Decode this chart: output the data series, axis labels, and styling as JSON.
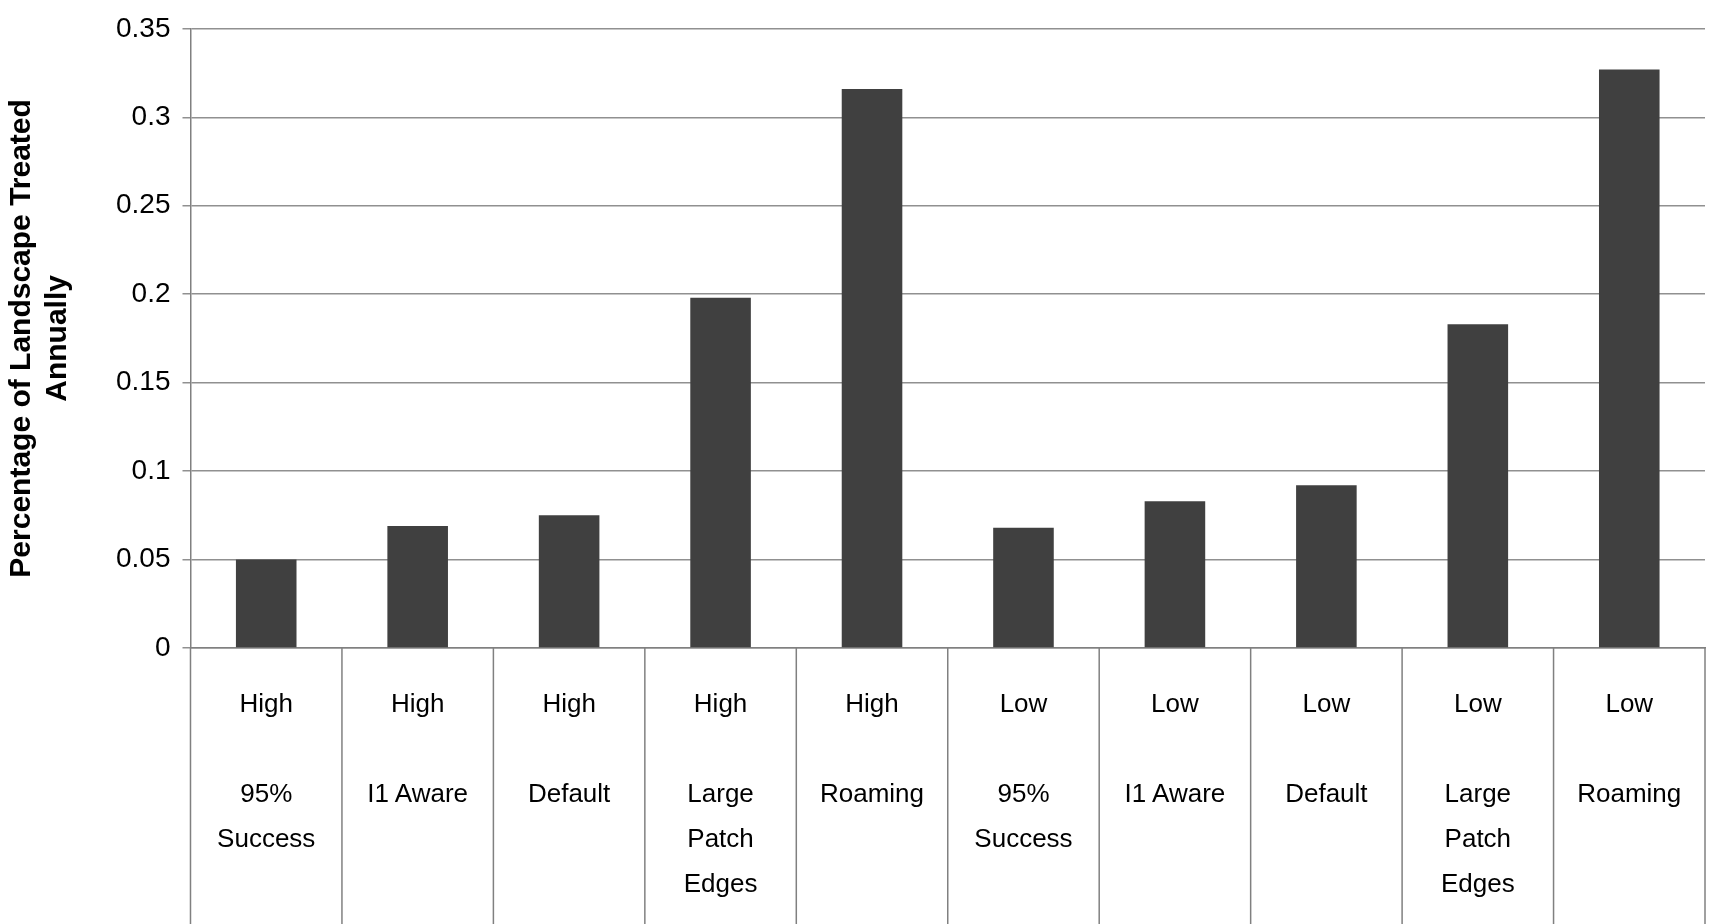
{
  "chart_data": {
    "type": "bar",
    "ylabel": "Percentage of Landscape Treated Annually",
    "categories": [
      "High\n95% Success",
      "High\nI1 Aware",
      "High\nDefault",
      "High\nLarge Patch Edges",
      "High\nRoaming",
      "Low\n95% Success",
      "Low\nI1 Aware",
      "Low\nDefault",
      "Low\nLarge Patch Edges",
      "Low\nRoaming"
    ],
    "values": [
      0.05,
      0.069,
      0.075,
      0.198,
      0.316,
      0.068,
      0.083,
      0.092,
      0.183,
      0.327
    ],
    "color": "#404040",
    "ylim": [
      0,
      0.35
    ],
    "yticks": [
      0,
      0.05,
      0.1,
      0.15,
      0.2,
      0.25,
      0.3,
      0.35
    ],
    "grid": "y",
    "legend": false
  }
}
